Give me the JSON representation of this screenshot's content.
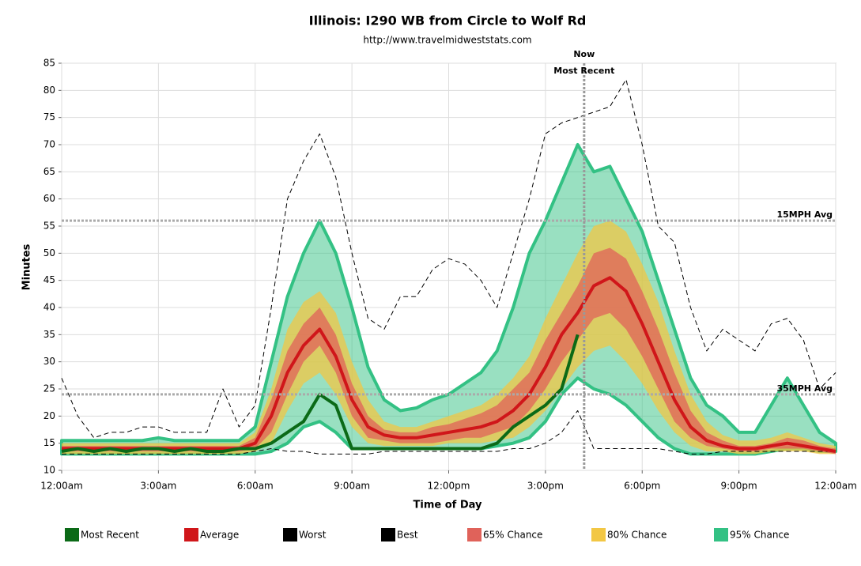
{
  "chart_data": {
    "type": "line",
    "title": "Illinois: I290 WB from Circle to Wolf Rd",
    "subtitle": "http://www.travelmidweststats.com",
    "x_label": "Time of Day",
    "y_label": "Minutes",
    "xlim": [
      0,
      24
    ],
    "ylim": [
      10,
      85
    ],
    "xticks": [
      {
        "value": 0,
        "label": "12:00am"
      },
      {
        "value": 3,
        "label": "3:00am"
      },
      {
        "value": 6,
        "label": "6:00am"
      },
      {
        "value": 9,
        "label": "9:00am"
      },
      {
        "value": 12,
        "label": "12:00pm"
      },
      {
        "value": 15,
        "label": "3:00pm"
      },
      {
        "value": 18,
        "label": "6:00pm"
      },
      {
        "value": 21,
        "label": "9:00pm"
      },
      {
        "value": 24,
        "label": "12:00am"
      }
    ],
    "yticks": [
      10,
      15,
      20,
      25,
      30,
      35,
      40,
      45,
      50,
      55,
      60,
      65,
      70,
      75,
      80,
      85
    ],
    "grid": true,
    "x": [
      0,
      0.5,
      1,
      1.5,
      2,
      2.5,
      3,
      3.5,
      4,
      4.5,
      5,
      5.5,
      6,
      6.5,
      7,
      7.5,
      8,
      8.5,
      9,
      9.5,
      10,
      10.5,
      11,
      11.5,
      12,
      12.5,
      13,
      13.5,
      14,
      14.5,
      15,
      15.5,
      16,
      16.5,
      17,
      17.5,
      18,
      18.5,
      19,
      19.5,
      20,
      20.5,
      21,
      21.5,
      22,
      22.5,
      23,
      23.5,
      24
    ],
    "reference_lines": [
      {
        "label": "15MPH Avg",
        "value": 56
      },
      {
        "label": "35MPH Avg",
        "value": 24
      }
    ],
    "now_marker": {
      "x": 16.2,
      "label": "Now",
      "sublabel": "Most Recent"
    },
    "series": [
      {
        "name": "95% Chance",
        "color": "#33c184",
        "style": "band",
        "values": [
          15.5,
          15.5,
          15.5,
          15.5,
          15.5,
          15.5,
          16,
          15.5,
          15.5,
          15.5,
          15.5,
          15.5,
          18,
          30,
          42,
          50,
          56,
          50,
          40,
          29,
          23,
          21,
          21.5,
          23,
          24,
          26,
          28,
          32,
          40,
          50,
          56,
          63,
          70,
          65,
          66,
          60,
          54,
          45,
          36,
          27,
          22,
          20,
          17,
          17,
          22,
          27,
          22,
          17,
          15
        ],
        "low": [
          13,
          13,
          13,
          13,
          13,
          13,
          13,
          13,
          13,
          13,
          13,
          13,
          13,
          13.5,
          15,
          18,
          19,
          17,
          14,
          14,
          14,
          14,
          14,
          14,
          14,
          14,
          14,
          14.5,
          15,
          16,
          19,
          24,
          27,
          25,
          24,
          22,
          19,
          16,
          14,
          13,
          13,
          13,
          13,
          13,
          13.5,
          14,
          14,
          13.5,
          13.5
        ]
      },
      {
        "name": "80% Chance",
        "color": "#f2c744",
        "style": "band",
        "values": [
          15,
          15,
          15,
          15,
          15,
          15,
          15,
          15,
          15,
          15,
          15,
          15,
          17,
          25,
          36,
          41,
          43,
          39,
          30,
          23,
          19,
          18,
          18,
          19,
          20,
          21,
          22,
          24,
          27,
          31,
          38,
          44,
          50,
          55,
          56,
          54,
          48,
          41,
          32,
          24,
          19,
          16.5,
          15.5,
          15.5,
          16,
          17,
          16,
          15,
          14.5
        ],
        "low": [
          13,
          13,
          13,
          13,
          13,
          13,
          13,
          13,
          13,
          13,
          13,
          13,
          13.5,
          15,
          21,
          26,
          28,
          24,
          18,
          15,
          14.5,
          14.5,
          14.5,
          14.5,
          15,
          15,
          15,
          15.5,
          16,
          18,
          21,
          25,
          29,
          32,
          33,
          30,
          26,
          21,
          17,
          14.5,
          13.5,
          13.5,
          13,
          13,
          13.5,
          13.5,
          13.5,
          13,
          13
        ]
      },
      {
        "name": "65% Chance",
        "color": "#e0625a",
        "style": "band",
        "values": [
          14.5,
          14.5,
          14.5,
          14.5,
          14.5,
          14.5,
          14.5,
          14.5,
          14.5,
          14.5,
          14.5,
          14.5,
          16,
          23,
          32,
          37,
          40,
          35,
          26,
          20,
          17.5,
          17,
          17,
          18,
          18.5,
          19.5,
          20.5,
          22,
          25,
          28,
          34,
          39,
          44,
          50,
          51,
          49,
          43,
          36,
          28,
          21,
          17,
          15.5,
          14.5,
          14.5,
          15,
          16,
          15.5,
          14.5,
          14
        ],
        "low": [
          13.5,
          13.5,
          13.5,
          13.5,
          13.5,
          13.5,
          13.5,
          13.5,
          13.5,
          13.5,
          13.5,
          13.5,
          14,
          17,
          24,
          30,
          33,
          28,
          20,
          16,
          15.5,
          15,
          15,
          15,
          15.5,
          16,
          16,
          17,
          18,
          21,
          25,
          30,
          34,
          38,
          39,
          36,
          31,
          25,
          19,
          16,
          14.5,
          14,
          13.5,
          13.5,
          14,
          14,
          14,
          13.5,
          13
        ]
      },
      {
        "name": "Worst",
        "color": "#000000",
        "style": "dashed",
        "values": [
          27,
          20,
          16,
          17,
          17,
          18,
          18,
          17,
          17,
          17,
          25,
          18,
          22,
          40,
          60,
          67,
          72,
          64,
          50,
          38,
          36,
          42,
          42,
          47,
          49,
          48,
          45,
          40,
          50,
          60,
          72,
          74,
          75,
          76,
          77,
          82,
          70,
          55,
          52,
          40,
          32,
          36,
          34,
          32,
          37,
          38,
          34,
          25,
          28
        ]
      },
      {
        "name": "Best",
        "color": "#000000",
        "style": "dashed",
        "values": [
          13,
          13,
          13,
          13,
          13,
          13,
          13,
          13,
          13,
          13,
          13,
          13,
          13.5,
          14,
          13.5,
          13.5,
          13,
          13,
          13,
          13,
          13.5,
          13.5,
          13.5,
          13.5,
          13.5,
          13.5,
          13.5,
          13.5,
          14,
          14,
          15,
          17,
          21,
          14,
          14,
          14,
          14,
          14,
          13.5,
          13,
          13,
          13.5,
          13.5,
          13.5,
          13.5,
          13.5,
          13.5,
          13.5,
          13.5
        ]
      },
      {
        "name": "Average",
        "color": "#d0161a",
        "style": "line",
        "values": [
          14,
          14,
          14,
          14,
          14,
          14,
          14,
          14,
          14,
          14,
          14,
          14,
          15,
          20,
          28,
          33,
          36,
          31,
          23,
          18,
          16.5,
          16,
          16,
          16.5,
          17,
          17.5,
          18,
          19,
          21,
          24,
          29,
          35,
          39,
          44,
          45.5,
          43,
          37,
          30,
          23,
          18,
          15.5,
          14.5,
          14,
          14,
          14.5,
          15,
          14.5,
          14,
          13.5
        ]
      },
      {
        "name": "Most Recent",
        "color": "#0b6a17",
        "style": "line",
        "values": [
          13.5,
          14,
          13.5,
          14,
          13.5,
          14,
          14,
          13.5,
          14,
          13.5,
          13.5,
          14,
          14,
          15,
          17,
          19,
          24,
          22,
          14,
          14,
          14,
          14,
          14,
          14,
          14,
          14,
          14,
          15,
          18,
          20,
          22,
          25,
          35,
          null,
          null,
          null,
          null,
          null,
          null,
          null,
          null,
          null,
          null,
          null,
          null,
          null,
          null,
          null,
          null
        ]
      }
    ],
    "legend": [
      {
        "name": "Most Recent",
        "color": "#0b6a17"
      },
      {
        "name": "Average",
        "color": "#d0161a"
      },
      {
        "name": "Worst",
        "color": "#000000"
      },
      {
        "name": "Best",
        "color": "#000000"
      },
      {
        "name": "65% Chance",
        "color": "#e0625a"
      },
      {
        "name": "80% Chance",
        "color": "#f2c744"
      },
      {
        "name": "95% Chance",
        "color": "#33c184"
      }
    ]
  }
}
